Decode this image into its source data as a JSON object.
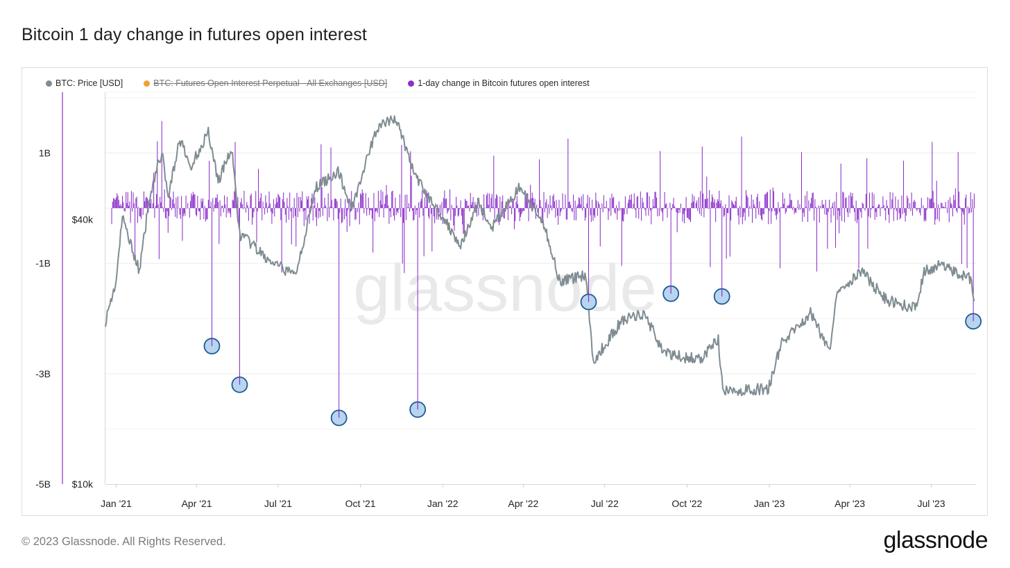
{
  "title": "Bitcoin 1 day change in futures open interest",
  "footer": "© 2023 Glassnode. All Rights Reserved.",
  "brand": "glassnode",
  "watermark": "glassnode",
  "legend": [
    {
      "label": "BTC: Price [USD]",
      "color": "#7f8c92",
      "disabled": false
    },
    {
      "label": "BTC: Futures Open Interest Perpetual - All Exchanges [USD]",
      "color": "#f0a033",
      "disabled": true
    },
    {
      "label": "1-day change in Bitcoin futures open interest",
      "color": "#8a2fc9",
      "disabled": false
    }
  ],
  "chart_data": {
    "type": "line",
    "x_ticks": [
      "Jan '21",
      "Apr '21",
      "Jul '21",
      "Oct '21",
      "Jan '22",
      "Apr '22",
      "Jul '22",
      "Oct '22",
      "Jan '23",
      "Apr '23",
      "Jul '23"
    ],
    "x_range": [
      "2020-12-20",
      "2023-08-20"
    ],
    "y_left": {
      "ticks": [
        "1B",
        "-1B",
        "-3B",
        "-5B"
      ],
      "tick_values": [
        1,
        -1,
        -3,
        -5
      ],
      "unit": "B USD",
      "range": [
        -5,
        2.1
      ]
    },
    "y_right": {
      "ticks": [
        "$40k",
        "$10k"
      ],
      "tick_values": [
        40000,
        10000
      ],
      "scale": "log",
      "range": [
        10000,
        78000
      ]
    },
    "series": [
      {
        "name": "BTC: Price [USD]",
        "axis": "right",
        "color": "#7f8c92",
        "points": [
          [
            "2020-12-20",
            23500
          ],
          [
            "2021-01-01",
            29000
          ],
          [
            "2021-01-08",
            40500
          ],
          [
            "2021-01-15",
            36500
          ],
          [
            "2021-01-27",
            30500
          ],
          [
            "2021-02-08",
            46000
          ],
          [
            "2021-02-21",
            57000
          ],
          [
            "2021-02-28",
            45000
          ],
          [
            "2021-03-13",
            61000
          ],
          [
            "2021-03-25",
            52500
          ],
          [
            "2021-04-14",
            63500
          ],
          [
            "2021-04-25",
            49000
          ],
          [
            "2021-05-10",
            58000
          ],
          [
            "2021-05-19",
            37000
          ],
          [
            "2021-05-30",
            35500
          ],
          [
            "2021-06-22",
            32000
          ],
          [
            "2021-07-20",
            29900
          ],
          [
            "2021-08-13",
            47500
          ],
          [
            "2021-09-06",
            51500
          ],
          [
            "2021-09-21",
            42500
          ],
          [
            "2021-10-20",
            65000
          ],
          [
            "2021-11-10",
            68000
          ],
          [
            "2021-11-26",
            54000
          ],
          [
            "2021-12-04",
            49000
          ],
          [
            "2022-01-22",
            35000
          ],
          [
            "2022-02-10",
            44000
          ],
          [
            "2022-02-24",
            38000
          ],
          [
            "2022-03-28",
            47500
          ],
          [
            "2022-04-26",
            38000
          ],
          [
            "2022-05-12",
            28900
          ],
          [
            "2022-06-10",
            30000
          ],
          [
            "2022-06-18",
            19000
          ],
          [
            "2022-07-20",
            23500
          ],
          [
            "2022-08-14",
            24500
          ],
          [
            "2022-09-06",
            19800
          ],
          [
            "2022-10-15",
            19200
          ],
          [
            "2022-11-05",
            21300
          ],
          [
            "2022-11-10",
            16200
          ],
          [
            "2022-12-31",
            16500
          ],
          [
            "2023-01-14",
            20800
          ],
          [
            "2023-02-16",
            24500
          ],
          [
            "2023-03-10",
            20000
          ],
          [
            "2023-03-17",
            27500
          ],
          [
            "2023-04-14",
            30500
          ],
          [
            "2023-05-12",
            26200
          ],
          [
            "2023-06-15",
            25100
          ],
          [
            "2023-06-23",
            30600
          ],
          [
            "2023-07-13",
            31500
          ],
          [
            "2023-08-15",
            29200
          ],
          [
            "2023-08-18",
            26100
          ]
        ]
      },
      {
        "name": "1-day change in Bitcoin futures open interest",
        "axis": "left",
        "color": "#8a2fc9",
        "type": "bar",
        "note": "daily bars oscillating mostly between -0.5B and +0.5B, with spikes",
        "extremes": [
          [
            "2021-02-21",
            1.58
          ],
          [
            "2021-04-18",
            -2.5
          ],
          [
            "2021-05-19",
            -3.2
          ],
          [
            "2021-09-07",
            -3.8
          ],
          [
            "2021-12-04",
            -3.65
          ],
          [
            "2022-06-13",
            -1.7
          ],
          [
            "2022-09-13",
            -1.55
          ],
          [
            "2022-11-09",
            -1.6
          ],
          [
            "2023-08-17",
            -2.05
          ]
        ]
      }
    ],
    "highlighted_points": [
      {
        "date": "2021-04-18",
        "value": -2.5
      },
      {
        "date": "2021-05-19",
        "value": -3.2
      },
      {
        "date": "2021-09-07",
        "value": -3.8
      },
      {
        "date": "2021-12-04",
        "value": -3.65
      },
      {
        "date": "2022-06-13",
        "value": -1.7
      },
      {
        "date": "2022-09-13",
        "value": -1.55
      },
      {
        "date": "2022-11-09",
        "value": -1.6
      },
      {
        "date": "2023-08-17",
        "value": -2.05
      }
    ],
    "colors": {
      "grid": "#ececec",
      "marker_fill": "#b8d4ef",
      "marker_stroke": "#1b5a95"
    }
  }
}
